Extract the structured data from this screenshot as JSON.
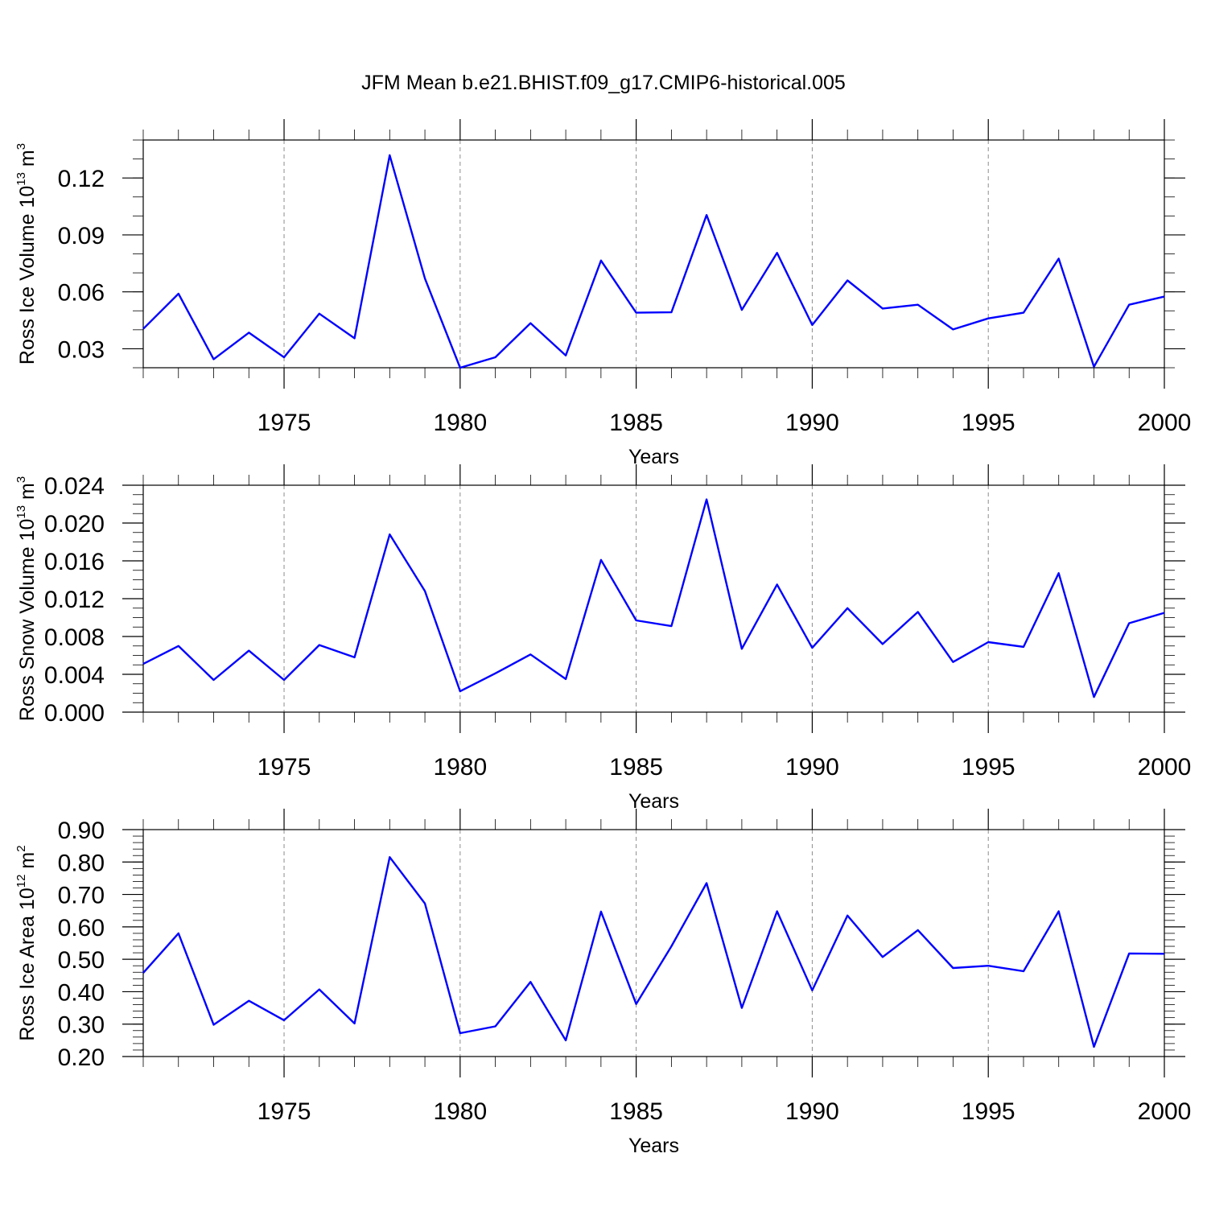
{
  "figure": {
    "title": "JFM Mean b.e21.BHIST.f09_g17.CMIP6-historical.005",
    "line_color": "#0000ff"
  },
  "chart_data": [
    {
      "type": "line",
      "title": "",
      "xlabel": "Years",
      "ylabel": "Ross Ice Volume 10",
      "ylabel_exp": "13",
      "ylabel_unit": " m",
      "ylabel_unit_exp": "3",
      "xlim": [
        1971,
        2000
      ],
      "ylim": [
        0.02,
        0.14
      ],
      "xticks": [
        1975,
        1980,
        1985,
        1990,
        1995,
        2000
      ],
      "xtick_labels": [
        "1975",
        "1980",
        "1985",
        "1990",
        "1995",
        "2000"
      ],
      "yticks": [
        0.03,
        0.06,
        0.09,
        0.12
      ],
      "ytick_labels": [
        "0.03",
        "0.06",
        "0.09",
        "0.12"
      ],
      "y_minor_step": 0.01,
      "grid": "dashed vertical at major x ticks",
      "series": [
        {
          "x": [
            1971,
            1972,
            1973,
            1974,
            1975,
            1976,
            1977,
            1978,
            1979,
            1980,
            1981,
            1982,
            1983,
            1984,
            1985,
            1986,
            1987,
            1988,
            1989,
            1990,
            1991,
            1992,
            1993,
            1994,
            1995,
            1996,
            1997,
            1998,
            1999,
            2000
          ],
          "values": [
            0.0405,
            0.059,
            0.0245,
            0.0385,
            0.0255,
            0.0485,
            0.0355,
            0.132,
            0.067,
            0.02,
            0.0255,
            0.0435,
            0.0265,
            0.0765,
            0.049,
            0.0492,
            0.1005,
            0.0505,
            0.0805,
            0.0425,
            0.066,
            0.0512,
            0.0532,
            0.0402,
            0.046,
            0.049,
            0.0775,
            0.0205,
            0.0532,
            0.0575
          ]
        }
      ]
    },
    {
      "type": "line",
      "title": "",
      "xlabel": "Years",
      "ylabel": "Ross Snow Volume 10",
      "ylabel_exp": "13",
      "ylabel_unit": " m",
      "ylabel_unit_exp": "3",
      "xlim": [
        1971,
        2000
      ],
      "ylim": [
        0.0,
        0.024
      ],
      "xticks": [
        1975,
        1980,
        1985,
        1990,
        1995,
        2000
      ],
      "xtick_labels": [
        "1975",
        "1980",
        "1985",
        "1990",
        "1995",
        "2000"
      ],
      "yticks": [
        0.0,
        0.004,
        0.008,
        0.012,
        0.016,
        0.02,
        0.024
      ],
      "ytick_labels": [
        "0.000",
        "0.004",
        "0.008",
        "0.012",
        "0.016",
        "0.020",
        "0.024"
      ],
      "y_minor_step": 0.001,
      "grid": "dashed vertical at major x ticks",
      "series": [
        {
          "x": [
            1971,
            1972,
            1973,
            1974,
            1975,
            1976,
            1977,
            1978,
            1979,
            1980,
            1981,
            1982,
            1983,
            1984,
            1985,
            1986,
            1987,
            1988,
            1989,
            1990,
            1991,
            1992,
            1993,
            1994,
            1995,
            1996,
            1997,
            1998,
            1999,
            2000
          ],
          "values": [
            0.0051,
            0.007,
            0.0034,
            0.0065,
            0.0034,
            0.0071,
            0.0058,
            0.0188,
            0.0128,
            0.0022,
            0.0041,
            0.0061,
            0.0035,
            0.0161,
            0.0097,
            0.0091,
            0.0225,
            0.0067,
            0.0135,
            0.0068,
            0.011,
            0.0072,
            0.0106,
            0.0053,
            0.0074,
            0.0069,
            0.0147,
            0.0016,
            0.0094,
            0.0105
          ]
        }
      ]
    },
    {
      "type": "line",
      "title": "",
      "xlabel": "Years",
      "ylabel": "Ross Ice Area 10",
      "ylabel_exp": "12",
      "ylabel_unit": " m",
      "ylabel_unit_exp": "2",
      "xlim": [
        1971,
        2000
      ],
      "ylim": [
        0.2,
        0.9
      ],
      "xticks": [
        1975,
        1980,
        1985,
        1990,
        1995,
        2000
      ],
      "xtick_labels": [
        "1975",
        "1980",
        "1985",
        "1990",
        "1995",
        "2000"
      ],
      "yticks": [
        0.2,
        0.3,
        0.4,
        0.5,
        0.6,
        0.7,
        0.8,
        0.9
      ],
      "ytick_labels": [
        "0.20",
        "0.30",
        "0.40",
        "0.50",
        "0.60",
        "0.70",
        "0.80",
        "0.90"
      ],
      "y_minor_step": 0.02,
      "grid": "dashed vertical at major x ticks",
      "series": [
        {
          "x": [
            1971,
            1972,
            1973,
            1974,
            1975,
            1976,
            1977,
            1978,
            1979,
            1980,
            1981,
            1982,
            1983,
            1984,
            1985,
            1986,
            1987,
            1988,
            1989,
            1990,
            1991,
            1992,
            1993,
            1994,
            1995,
            1996,
            1997,
            1998,
            1999,
            2000
          ],
          "values": [
            0.458,
            0.58,
            0.298,
            0.372,
            0.312,
            0.407,
            0.302,
            0.815,
            0.672,
            0.272,
            0.293,
            0.43,
            0.25,
            0.647,
            0.362,
            0.54,
            0.735,
            0.35,
            0.648,
            0.404,
            0.635,
            0.507,
            0.59,
            0.473,
            0.48,
            0.463,
            0.648,
            0.23,
            0.518,
            0.517
          ]
        }
      ]
    }
  ]
}
